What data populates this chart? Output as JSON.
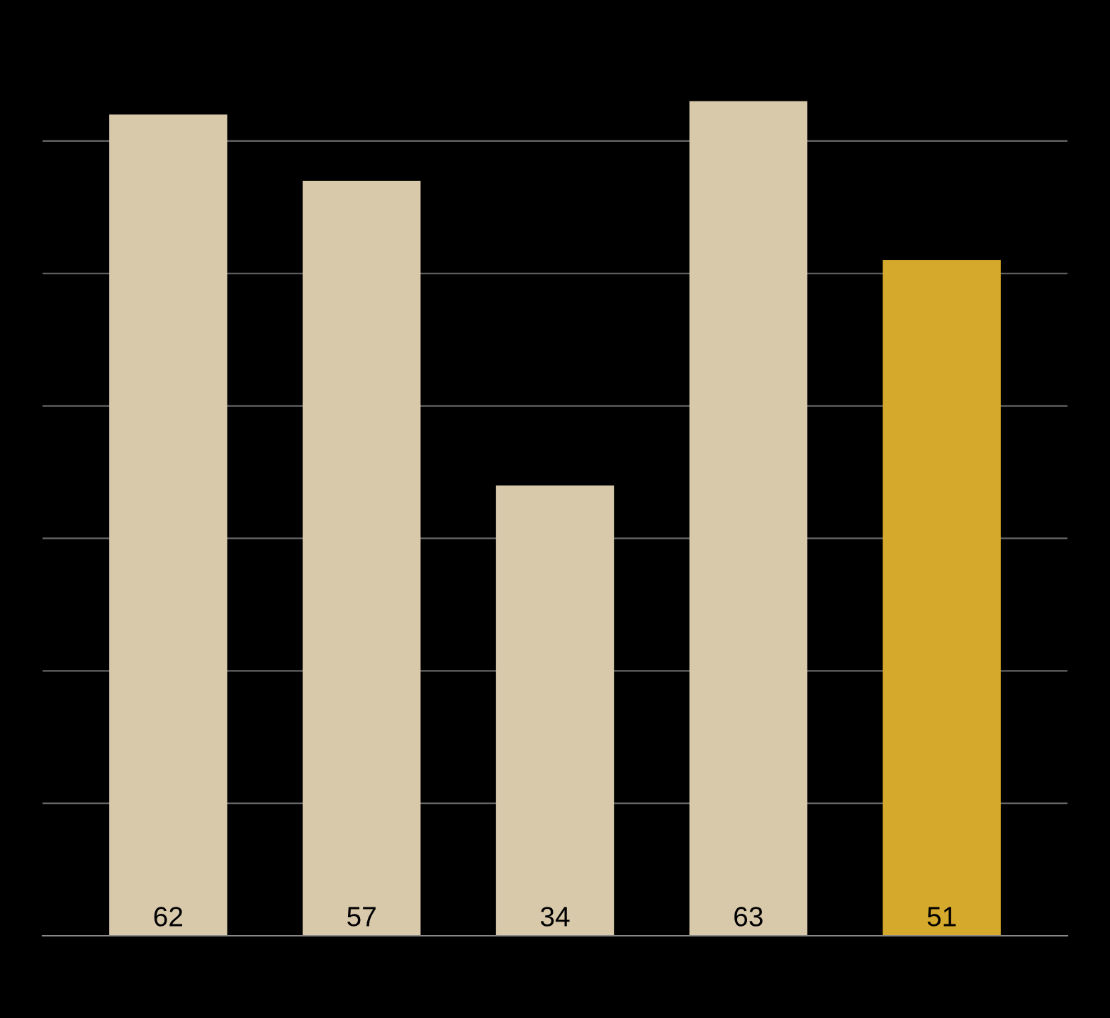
{
  "chart_data": {
    "type": "bar",
    "categories": [
      null,
      null,
      null,
      null,
      null
    ],
    "values": [
      62,
      57,
      34,
      63,
      51
    ],
    "colors": [
      "#d9c9ab",
      "#d9c9ab",
      "#d9c9ab",
      "#d9c9ab",
      "#d5a92b"
    ],
    "yticks": [
      {
        "value": 0,
        "label": null
      },
      {
        "value": 10,
        "label": null
      },
      {
        "value": 20,
        "label": null
      },
      {
        "value": 30,
        "label": null
      },
      {
        "value": 40,
        "label": null
      },
      {
        "value": 50,
        "label": null
      },
      {
        "value": 60,
        "label": null
      }
    ],
    "grid": "y",
    "data_labels": true,
    "legend": false
  }
}
